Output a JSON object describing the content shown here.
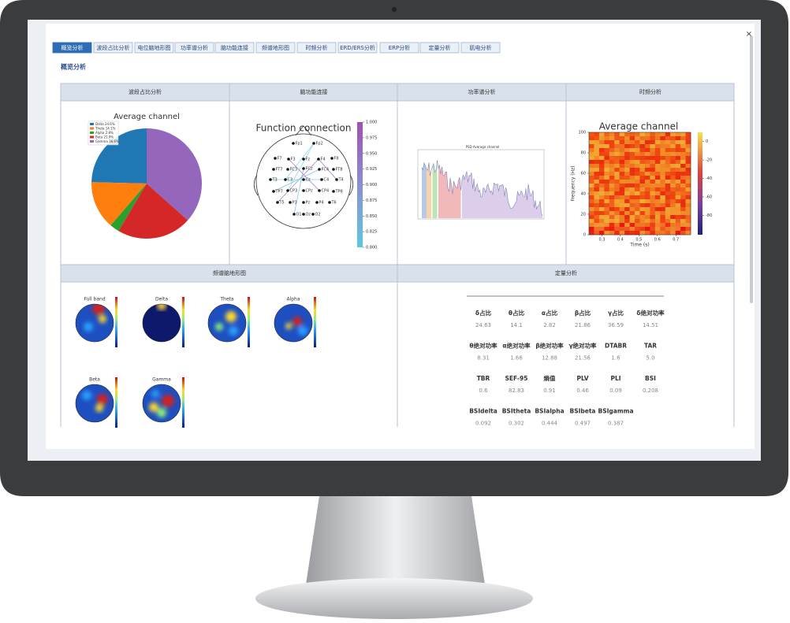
{
  "tabs": [
    "概览分析",
    "波段占比分析",
    "电位脑地形图",
    "功率谱分析",
    "脑功能连接",
    "频谱地形图",
    "时频分析",
    "ERD/ERS分析",
    "ERP分析",
    "定量分析",
    "肌电分析"
  ],
  "close": "×",
  "section_title": "概览分析",
  "band_ratio": {
    "header": "波段占比分析",
    "title": "Average channel",
    "labels": [
      "Delta 24.6%",
      "Theta 14.1%",
      "Alpha 2.8%",
      "Beta 21.9%",
      "Gamma 36.6%"
    ],
    "values": [
      24.6,
      14.1,
      2.8,
      21.9,
      36.6
    ],
    "colors": [
      "#1f77b4",
      "#ff7f0e",
      "#2ca02c",
      "#d62728",
      "#9467bd"
    ]
  },
  "connection": {
    "header": "脑功能连接",
    "title": "Function connection",
    "electrodes": [
      "Fp1",
      "Fp2",
      "F7",
      "F3",
      "Fz",
      "F4",
      "F8",
      "FT7",
      "FC3",
      "FCz",
      "FC4",
      "FT8",
      "T3",
      "C3",
      "Cz",
      "C4",
      "T4",
      "TP7",
      "CP3",
      "CPz",
      "CP4",
      "TP8",
      "T5",
      "P3",
      "Pz",
      "P4",
      "T6",
      "O1",
      "Oz",
      "O2"
    ],
    "clim": [
      0.8,
      1.0
    ],
    "cticks": [
      {
        "value": 1,
        "label": "1.000"
      },
      {
        "value": 0.975,
        "label": "0.975"
      },
      {
        "value": 0.95,
        "label": "0.950"
      },
      {
        "value": 0.925,
        "label": "0.925"
      },
      {
        "value": 0.9,
        "label": "0.900"
      },
      {
        "value": 0.875,
        "label": "0.875"
      },
      {
        "value": 0.85,
        "label": "0.850"
      },
      {
        "value": 0.825,
        "label": "0.825"
      },
      {
        "value": 0.8,
        "label": "0.800"
      }
    ]
  },
  "psd": {
    "header": "功率谱分析",
    "title": "PSD Average channel"
  },
  "time_freq": {
    "header": "时频分析",
    "title": "Average channel",
    "xlabel": "Time (s)",
    "ylabel": "Frequency (Hz)",
    "xlim": [
      0.23,
      0.78
    ],
    "xticks": [
      0.3,
      0.4,
      0.5,
      0.6,
      0.7
    ],
    "ylim": [
      0,
      100
    ],
    "yticks": [
      0,
      20,
      40,
      60,
      80,
      100
    ],
    "clim": [
      -101,
      10
    ],
    "cticks": [
      0,
      -20,
      -40,
      -60,
      -80
    ]
  },
  "topomap": {
    "header": "频谱脑地形图",
    "titles": [
      "Full band",
      "Delta",
      "Theta",
      "Alpha",
      "Beta",
      "Gamma"
    ]
  },
  "quant": {
    "header": "定量分析",
    "rows": [
      [
        {
          "label": "δ占比",
          "value": "24.63"
        },
        {
          "label": "θ占比",
          "value": "14.1"
        },
        {
          "label": "α占比",
          "value": "2.82"
        },
        {
          "label": "β占比",
          "value": "21.86"
        },
        {
          "label": "γ占比",
          "value": "36.59"
        },
        {
          "label": "δ绝对功率",
          "value": "14.51"
        }
      ],
      [
        {
          "label": "θ绝对功率",
          "value": "8.31"
        },
        {
          "label": "α绝对功率",
          "value": "1.66"
        },
        {
          "label": "β绝对功率",
          "value": "12.88"
        },
        {
          "label": "γ绝对功率",
          "value": "21.56"
        },
        {
          "label": "DTABR",
          "value": "1.6"
        },
        {
          "label": "TAR",
          "value": "5.0"
        }
      ],
      [
        {
          "label": "TBR",
          "value": "0.6"
        },
        {
          "label": "SEF-95",
          "value": "82.83"
        },
        {
          "label": "熵值",
          "value": "0.91"
        },
        {
          "label": "PLV",
          "value": "0.46"
        },
        {
          "label": "PLI",
          "value": "0.09"
        },
        {
          "label": "BSI",
          "value": "0.208"
        }
      ],
      [
        {
          "label": "BSIdelta",
          "value": "0.092"
        },
        {
          "label": "BSItheta",
          "value": "0.302"
        },
        {
          "label": "BSIalpha",
          "value": "0.444"
        },
        {
          "label": "BSIbeta",
          "value": "0.497"
        },
        {
          "label": "BSIgamma",
          "value": "0.387"
        }
      ]
    ]
  }
}
